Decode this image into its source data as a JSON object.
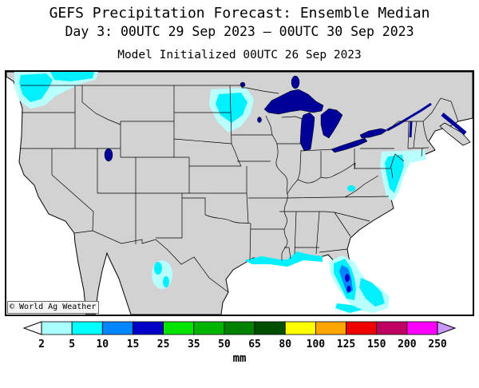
{
  "header": {
    "title": "GEFS Precipitation Forecast: Ensemble Median",
    "subtitle": "Day 3: 00UTC 29 Sep 2023 — 00UTC 30 Sep 2023",
    "init_line": "Model Initialized 00UTC 26 Sep 2023"
  },
  "map": {
    "copyright": "© World Ag Weather",
    "colors": {
      "land": "#d2d2d2",
      "ocean": "#ffffff",
      "lake": "#000099",
      "border": "#000000",
      "precip_light": "#b8ffff",
      "precip_cyan": "#00f0ff",
      "precip_blue": "#0087ff",
      "precip_navy": "#0000cd"
    }
  },
  "colorbar": {
    "unit": "mm",
    "ticks": [
      "2",
      "5",
      "10",
      "15",
      "25",
      "35",
      "50",
      "65",
      "80",
      "100",
      "125",
      "150",
      "200",
      "250"
    ],
    "segment_colors": [
      "#aaffff",
      "#00ffff",
      "#0087ff",
      "#0000c8",
      "#00e400",
      "#00b400",
      "#008200",
      "#004f00",
      "#ffff00",
      "#ffa500",
      "#f00000",
      "#c00060",
      "#ff00ff"
    ],
    "left_arrow_color": "#ffffff",
    "right_arrow_color": "#cc99ff"
  }
}
